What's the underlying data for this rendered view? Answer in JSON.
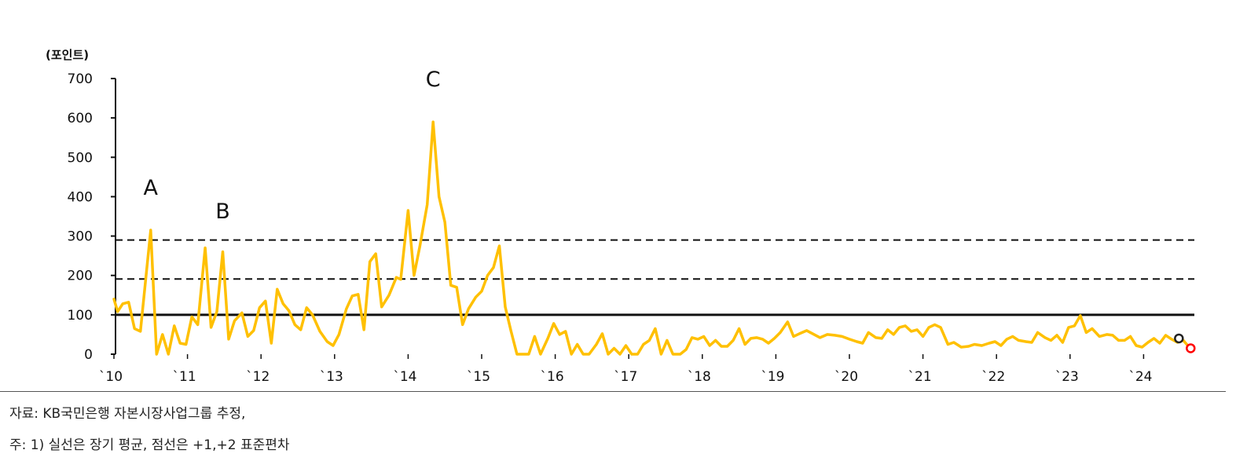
{
  "chart_data": {
    "type": "line",
    "unit_label": "(포인트)",
    "ylim": [
      0,
      700
    ],
    "yticks": [
      0,
      100,
      200,
      300,
      400,
      500,
      600,
      700
    ],
    "xlim": [
      2010,
      2024.85
    ],
    "xticks": [
      {
        "year": 2010,
        "label": "`10"
      },
      {
        "year": 2011,
        "label": "`11"
      },
      {
        "year": 2012,
        "label": "`12"
      },
      {
        "year": 2013,
        "label": "`13"
      },
      {
        "year": 2014,
        "label": "`14"
      },
      {
        "year": 2015,
        "label": "`15"
      },
      {
        "year": 2016,
        "label": "`16"
      },
      {
        "year": 2017,
        "label": "`17"
      },
      {
        "year": 2018,
        "label": "`18"
      },
      {
        "year": 2019,
        "label": "`19"
      },
      {
        "year": 2020,
        "label": "`20"
      },
      {
        "year": 2021,
        "label": "`21"
      },
      {
        "year": 2022,
        "label": "`22"
      },
      {
        "year": 2023,
        "label": "`23"
      },
      {
        "year": 2024,
        "label": "`24"
      }
    ],
    "series": [
      {
        "color": "#FFC000",
        "points": [
          [
            2010.0,
            140
          ],
          [
            2010.05,
            108
          ],
          [
            2010.12,
            128
          ],
          [
            2010.2,
            132
          ],
          [
            2010.28,
            65
          ],
          [
            2010.36,
            58
          ],
          [
            2010.5,
            315
          ],
          [
            2010.58,
            0
          ],
          [
            2010.66,
            50
          ],
          [
            2010.74,
            0
          ],
          [
            2010.82,
            72
          ],
          [
            2010.9,
            28
          ],
          [
            2010.98,
            25
          ],
          [
            2011.06,
            95
          ],
          [
            2011.14,
            75
          ],
          [
            2011.24,
            270
          ],
          [
            2011.32,
            68
          ],
          [
            2011.4,
            108
          ],
          [
            2011.48,
            260
          ],
          [
            2011.56,
            38
          ],
          [
            2011.64,
            85
          ],
          [
            2011.74,
            105
          ],
          [
            2011.82,
            45
          ],
          [
            2011.9,
            60
          ],
          [
            2011.98,
            118
          ],
          [
            2012.06,
            135
          ],
          [
            2012.14,
            28
          ],
          [
            2012.22,
            165
          ],
          [
            2012.3,
            128
          ],
          [
            2012.38,
            110
          ],
          [
            2012.46,
            75
          ],
          [
            2012.54,
            62
          ],
          [
            2012.62,
            118
          ],
          [
            2012.7,
            100
          ],
          [
            2012.8,
            58
          ],
          [
            2012.9,
            32
          ],
          [
            2012.98,
            22
          ],
          [
            2013.06,
            50
          ],
          [
            2013.16,
            115
          ],
          [
            2013.24,
            148
          ],
          [
            2013.32,
            152
          ],
          [
            2013.4,
            62
          ],
          [
            2013.48,
            235
          ],
          [
            2013.56,
            255
          ],
          [
            2013.64,
            120
          ],
          [
            2013.74,
            150
          ],
          [
            2013.84,
            195
          ],
          [
            2013.9,
            190
          ],
          [
            2014.0,
            365
          ],
          [
            2014.08,
            200
          ],
          [
            2014.16,
            275
          ],
          [
            2014.26,
            380
          ],
          [
            2014.34,
            590
          ],
          [
            2014.42,
            400
          ],
          [
            2014.5,
            335
          ],
          [
            2014.58,
            175
          ],
          [
            2014.66,
            170
          ],
          [
            2014.74,
            75
          ],
          [
            2014.82,
            115
          ],
          [
            2014.92,
            145
          ],
          [
            2015.0,
            160
          ],
          [
            2015.08,
            200
          ],
          [
            2015.16,
            220
          ],
          [
            2015.24,
            275
          ],
          [
            2015.32,
            120
          ],
          [
            2015.4,
            58
          ],
          [
            2015.48,
            0
          ],
          [
            2015.56,
            0
          ],
          [
            2015.64,
            0
          ],
          [
            2015.72,
            45
          ],
          [
            2015.8,
            0
          ],
          [
            2015.9,
            40
          ],
          [
            2015.98,
            78
          ],
          [
            2016.06,
            50
          ],
          [
            2016.14,
            58
          ],
          [
            2016.22,
            0
          ],
          [
            2016.3,
            25
          ],
          [
            2016.38,
            0
          ],
          [
            2016.46,
            0
          ],
          [
            2016.56,
            25
          ],
          [
            2016.64,
            52
          ],
          [
            2016.72,
            0
          ],
          [
            2016.8,
            15
          ],
          [
            2016.88,
            0
          ],
          [
            2016.96,
            22
          ],
          [
            2017.04,
            0
          ],
          [
            2017.12,
            0
          ],
          [
            2017.2,
            25
          ],
          [
            2017.28,
            35
          ],
          [
            2017.36,
            65
          ],
          [
            2017.44,
            0
          ],
          [
            2017.52,
            35
          ],
          [
            2017.6,
            0
          ],
          [
            2017.7,
            0
          ],
          [
            2017.78,
            12
          ],
          [
            2017.86,
            42
          ],
          [
            2017.94,
            38
          ],
          [
            2018.02,
            45
          ],
          [
            2018.1,
            22
          ],
          [
            2018.18,
            35
          ],
          [
            2018.26,
            20
          ],
          [
            2018.34,
            20
          ],
          [
            2018.42,
            35
          ],
          [
            2018.5,
            65
          ],
          [
            2018.58,
            25
          ],
          [
            2018.66,
            40
          ],
          [
            2018.74,
            42
          ],
          [
            2018.82,
            38
          ],
          [
            2018.9,
            28
          ],
          [
            2018.98,
            40
          ],
          [
            2019.06,
            55
          ],
          [
            2019.16,
            82
          ],
          [
            2019.24,
            45
          ],
          [
            2019.32,
            52
          ],
          [
            2019.42,
            60
          ],
          [
            2019.5,
            52
          ],
          [
            2019.6,
            42
          ],
          [
            2019.7,
            50
          ],
          [
            2019.8,
            48
          ],
          [
            2019.9,
            45
          ],
          [
            2020.0,
            38
          ],
          [
            2020.1,
            32
          ],
          [
            2020.18,
            28
          ],
          [
            2020.26,
            55
          ],
          [
            2020.36,
            42
          ],
          [
            2020.44,
            40
          ],
          [
            2020.52,
            62
          ],
          [
            2020.6,
            50
          ],
          [
            2020.68,
            68
          ],
          [
            2020.76,
            72
          ],
          [
            2020.84,
            58
          ],
          [
            2020.92,
            62
          ],
          [
            2021.0,
            45
          ],
          [
            2021.08,
            68
          ],
          [
            2021.16,
            75
          ],
          [
            2021.24,
            68
          ],
          [
            2021.34,
            25
          ],
          [
            2021.42,
            30
          ],
          [
            2021.52,
            18
          ],
          [
            2021.62,
            20
          ],
          [
            2021.7,
            25
          ],
          [
            2021.8,
            22
          ],
          [
            2021.9,
            28
          ],
          [
            2021.98,
            32
          ],
          [
            2022.06,
            22
          ],
          [
            2022.14,
            38
          ],
          [
            2022.22,
            45
          ],
          [
            2022.3,
            35
          ],
          [
            2022.4,
            32
          ],
          [
            2022.48,
            30
          ],
          [
            2022.56,
            55
          ],
          [
            2022.66,
            42
          ],
          [
            2022.74,
            35
          ],
          [
            2022.82,
            48
          ],
          [
            2022.9,
            30
          ],
          [
            2022.98,
            68
          ],
          [
            2023.06,
            72
          ],
          [
            2023.14,
            98
          ],
          [
            2023.22,
            55
          ],
          [
            2023.3,
            65
          ],
          [
            2023.4,
            45
          ],
          [
            2023.5,
            50
          ],
          [
            2023.58,
            48
          ],
          [
            2023.66,
            35
          ],
          [
            2023.74,
            35
          ],
          [
            2023.82,
            45
          ],
          [
            2023.9,
            22
          ],
          [
            2023.98,
            18
          ],
          [
            2024.06,
            30
          ],
          [
            2024.14,
            40
          ],
          [
            2024.22,
            28
          ],
          [
            2024.3,
            48
          ],
          [
            2024.38,
            38
          ],
          [
            2024.46,
            30
          ],
          [
            2024.54,
            35
          ],
          [
            2024.6,
            22
          ]
        ]
      }
    ],
    "reference_lines": [
      {
        "kind": "long-term average",
        "value": 100,
        "style": "solid"
      },
      {
        "kind": "+1 standard deviation",
        "value": 191,
        "style": "dashed"
      },
      {
        "kind": "+2 standard deviation",
        "value": 290,
        "style": "dashed"
      }
    ],
    "markers": [
      {
        "x": 2024.48,
        "y": 40,
        "color": "#222222"
      },
      {
        "x": 2024.64,
        "y": 15,
        "color": "#ff0000"
      }
    ],
    "annotations": [
      {
        "text": "A",
        "x": 2010.5,
        "y": 405
      },
      {
        "text": "B",
        "x": 2011.48,
        "y": 345
      },
      {
        "text": "C",
        "x": 2014.34,
        "y": 680
      }
    ]
  },
  "notes": {
    "source": "자료: KB국민은행 자본시장사업그룹 추정,",
    "footnote": "주: 1) 실선은 장기 평균, 점선은 +1,+2 표준편차"
  }
}
